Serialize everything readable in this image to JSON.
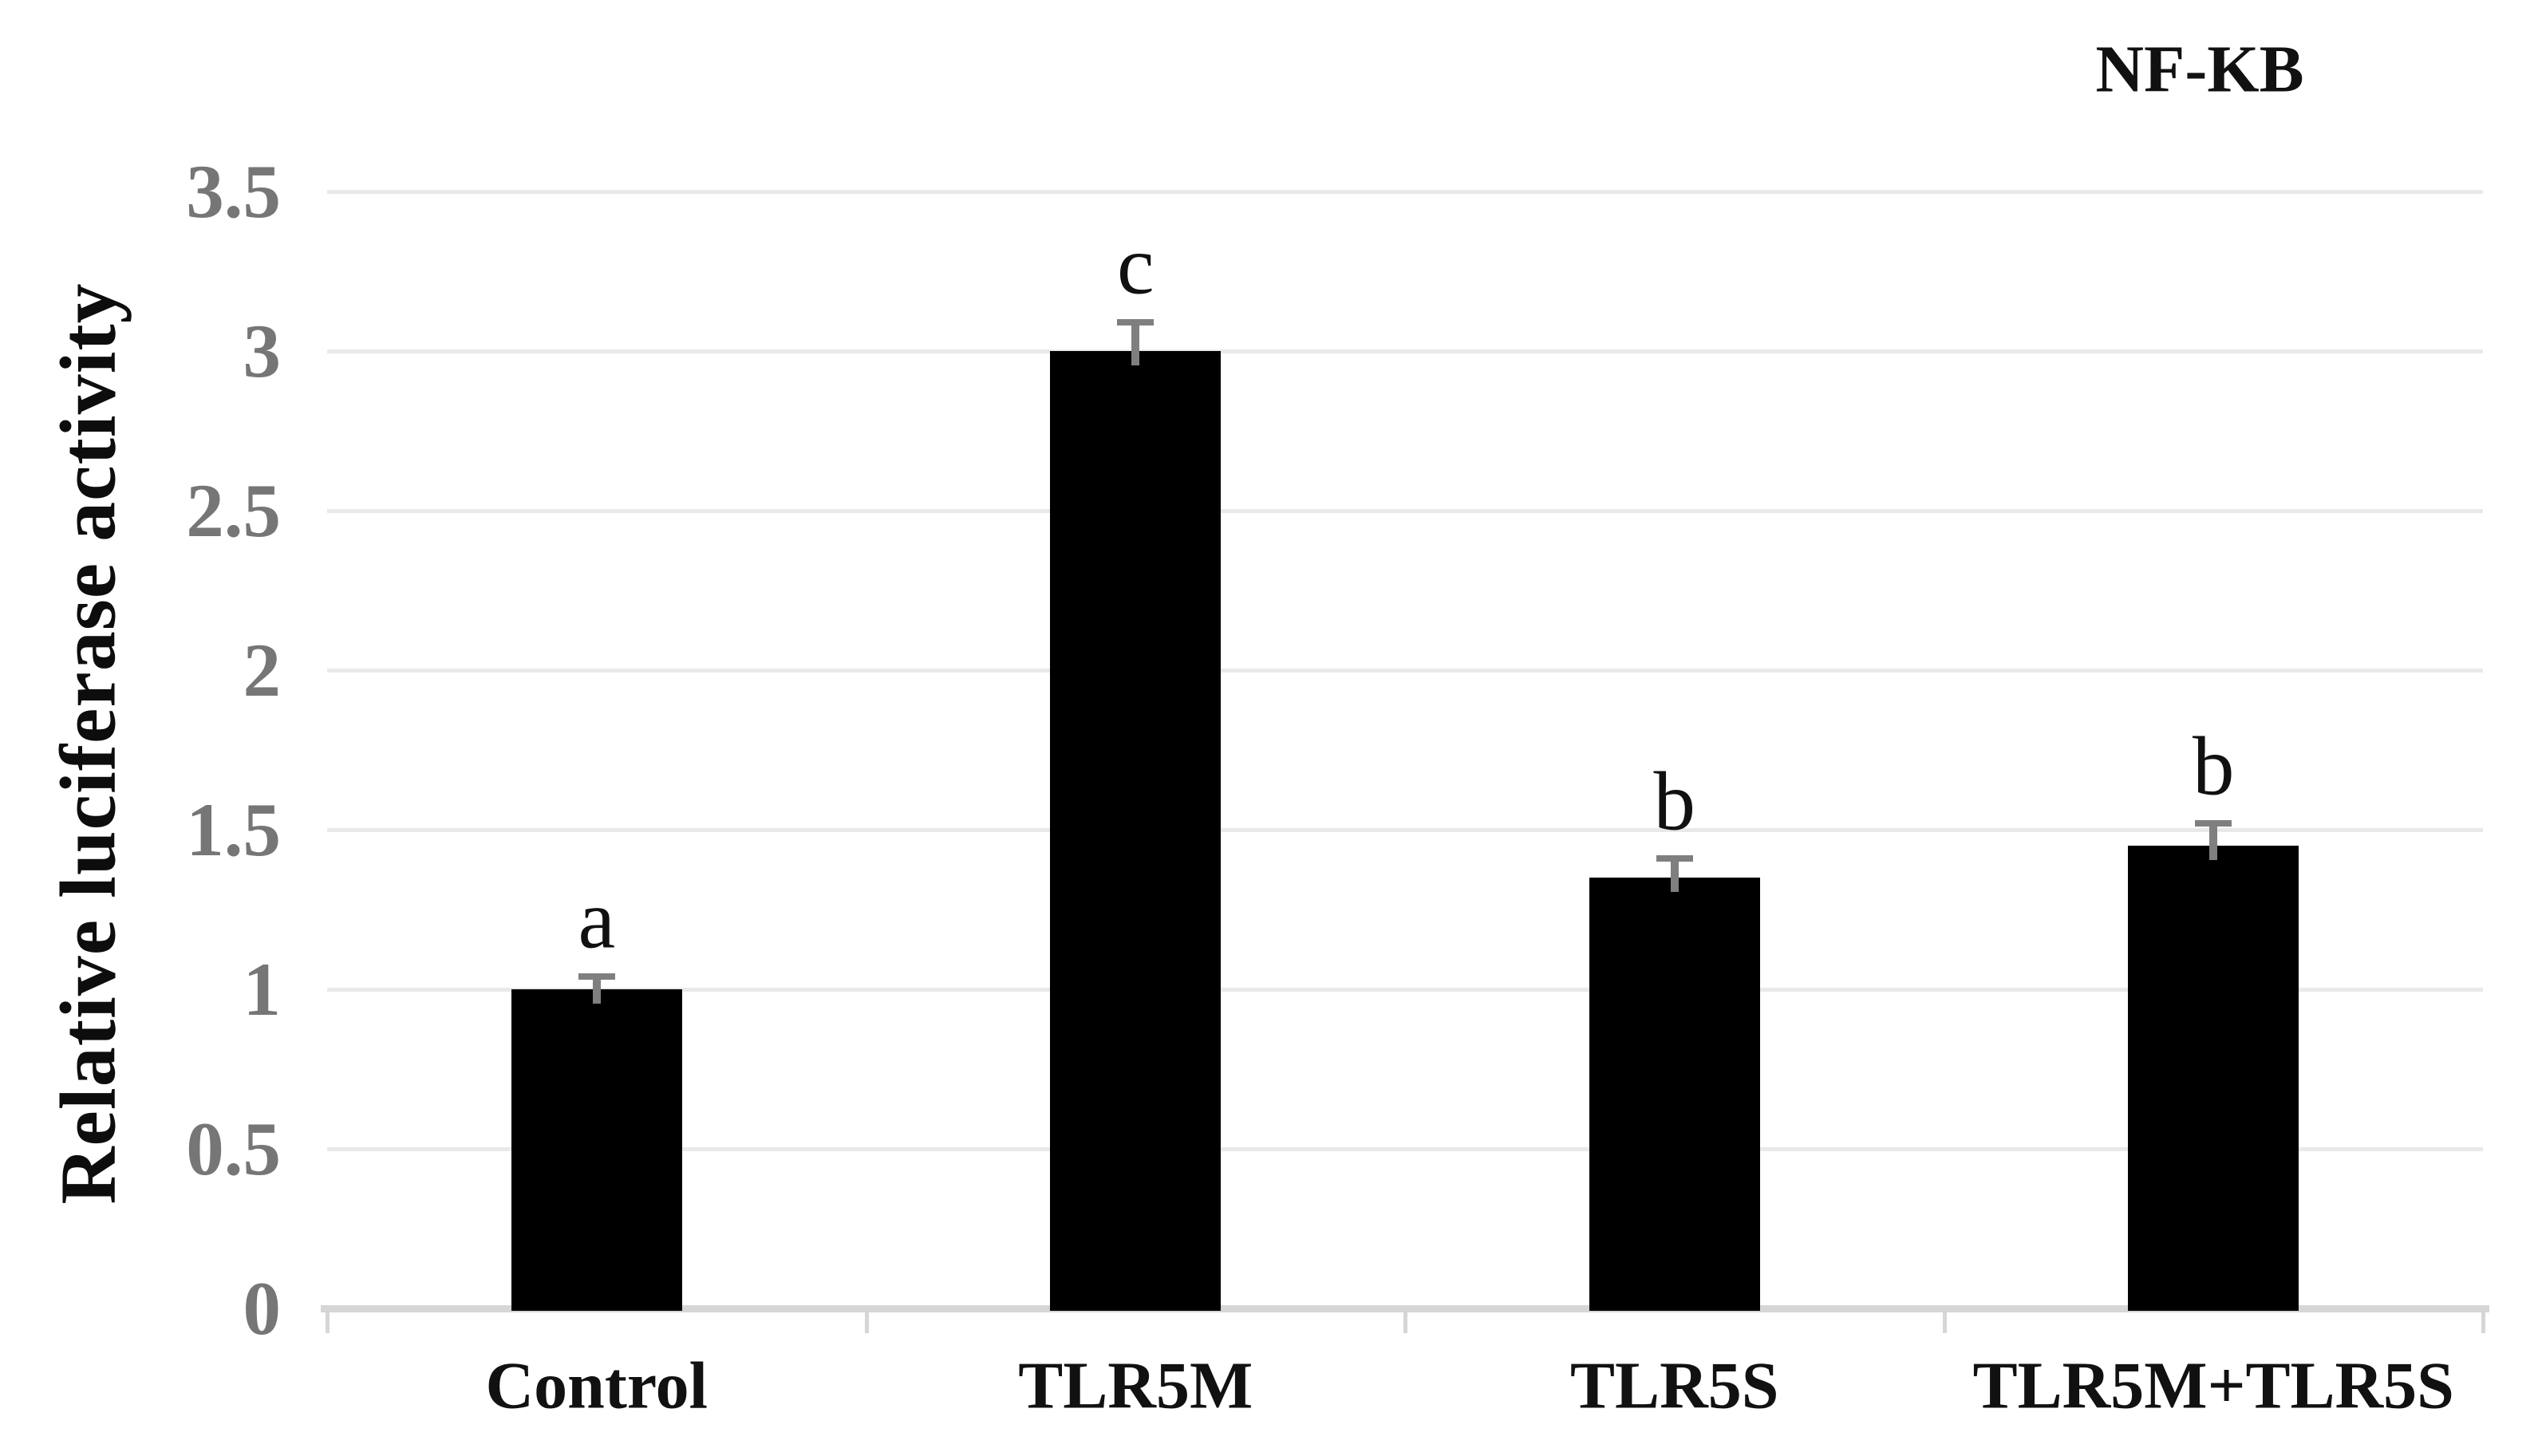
{
  "chart_data": {
    "type": "bar",
    "title": "NF-KB",
    "ylabel": "Relative luciferase activity",
    "xlabel": "",
    "categories": [
      "Control",
      "TLR5M",
      "TLR5S",
      "TLR5M+TLR5S"
    ],
    "values": [
      1.0,
      3.0,
      1.35,
      1.45
    ],
    "errors": [
      0.04,
      0.09,
      0.06,
      0.07
    ],
    "sig_letters": [
      "a",
      "c",
      "b",
      "b"
    ],
    "yticks": [
      0,
      0.5,
      1,
      1.5,
      2,
      2.5,
      3,
      3.5
    ],
    "ytick_labels": [
      "0",
      "0.5",
      "1",
      "1.5",
      "2",
      "2.5",
      "3",
      "3.5"
    ],
    "ylim": [
      0,
      3.5
    ],
    "grid": true,
    "legend": "none",
    "bar_color": "#000000",
    "tick_label_color": "#767676",
    "gridline_color": "#e9e9e9",
    "axis_line_color": "#d6d6d6",
    "error_bar_color": "#7f7f7f",
    "text_color": "#111111"
  }
}
